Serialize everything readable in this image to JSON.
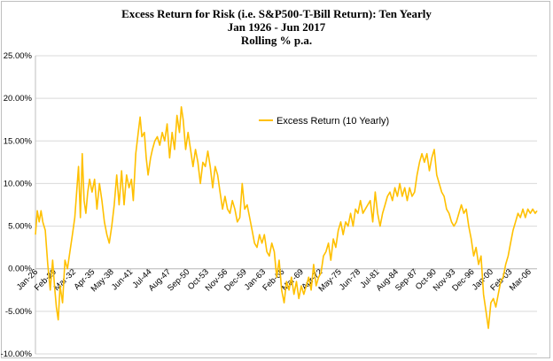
{
  "chart_data": {
    "type": "line",
    "title": "Excess Return for Risk (i.e. S&P500-T-Bill Return): Ten Yearly",
    "subtitle1": "Jan 1926 - Jun 2017",
    "subtitle2": "Rolling % p.a.",
    "ylim": [
      -10,
      25
    ],
    "yticks": [
      -10,
      -5,
      0,
      5,
      10,
      15,
      20,
      25
    ],
    "ytick_labels": [
      "-10.00%",
      "-5.00%",
      "0.00%",
      "5.00%",
      "10.00%",
      "15.00%",
      "20.00%",
      "25.00%"
    ],
    "xlim": [
      1926.0,
      2007.5
    ],
    "x_tick_positions": [
      1926.0,
      1929.0,
      1932.17,
      1935.25,
      1938.33,
      1941.42,
      1944.5,
      1947.58,
      1950.67,
      1953.75,
      1956.83,
      1959.92,
      1963.0,
      1966.08,
      1969.17,
      1972.25,
      1975.33,
      1978.42,
      1981.5,
      1984.58,
      1987.67,
      1990.75,
      1993.83,
      1996.92,
      2000.0,
      2003.08,
      2006.17
    ],
    "x_tick_labels": [
      "Jan-26",
      "Feb-29",
      "Mar-32",
      "Apr-35",
      "May-38",
      "Jun-41",
      "Jul-44",
      "Aug-47",
      "Sep-50",
      "Oct-53",
      "Nov-56",
      "Dec-59",
      "Jan-63",
      "Feb-66",
      "Mar-69",
      "Apr-72",
      "May-75",
      "Jun-78",
      "Jul-81",
      "Aug-84",
      "Sep-87",
      "Oct-90",
      "Nov-93",
      "Dec-96",
      "Jan-00",
      "Feb-03",
      "Mar-06"
    ],
    "grid": true,
    "legend_position": "top-right",
    "colors": {
      "line": "#ffc000",
      "grid": "#d9d9d9",
      "axis": "#bfbfbf"
    },
    "series": [
      {
        "name": "Excess Return (10 Yearly)",
        "points": [
          [
            1926.0,
            4.0
          ],
          [
            1926.3,
            6.8
          ],
          [
            1926.6,
            5.5
          ],
          [
            1926.9,
            6.8
          ],
          [
            1927.2,
            5.5
          ],
          [
            1927.6,
            4.5
          ],
          [
            1928.0,
            0.5
          ],
          [
            1928.4,
            -2.5
          ],
          [
            1928.8,
            1.0
          ],
          [
            1929.1,
            -2.0
          ],
          [
            1929.4,
            -4.5
          ],
          [
            1929.7,
            -6.0
          ],
          [
            1930.0,
            -2.0
          ],
          [
            1930.4,
            -4.0
          ],
          [
            1930.8,
            1.0
          ],
          [
            1931.2,
            0.0
          ],
          [
            1931.6,
            2.0
          ],
          [
            1932.0,
            4.0
          ],
          [
            1932.4,
            6.0
          ],
          [
            1932.8,
            10.0
          ],
          [
            1933.0,
            12.0
          ],
          [
            1933.3,
            6.0
          ],
          [
            1933.6,
            13.5
          ],
          [
            1933.9,
            8.0
          ],
          [
            1934.2,
            6.5
          ],
          [
            1934.5,
            9.0
          ],
          [
            1934.8,
            10.5
          ],
          [
            1935.2,
            9.0
          ],
          [
            1935.6,
            10.5
          ],
          [
            1936.0,
            7.0
          ],
          [
            1936.4,
            10.0
          ],
          [
            1936.8,
            8.0
          ],
          [
            1937.2,
            5.5
          ],
          [
            1937.6,
            4.0
          ],
          [
            1938.0,
            3.0
          ],
          [
            1938.4,
            5.0
          ],
          [
            1938.8,
            7.5
          ],
          [
            1939.2,
            11.0
          ],
          [
            1939.6,
            7.5
          ],
          [
            1940.0,
            11.5
          ],
          [
            1940.4,
            7.5
          ],
          [
            1940.8,
            11.0
          ],
          [
            1941.2,
            9.5
          ],
          [
            1941.6,
            10.5
          ],
          [
            1941.9,
            8.0
          ],
          [
            1942.3,
            13.5
          ],
          [
            1942.7,
            16.0
          ],
          [
            1943.0,
            17.8
          ],
          [
            1943.3,
            15.5
          ],
          [
            1943.7,
            16.0
          ],
          [
            1944.0,
            13.0
          ],
          [
            1944.3,
            11.0
          ],
          [
            1944.7,
            13.0
          ],
          [
            1945.0,
            14.0
          ],
          [
            1945.4,
            15.0
          ],
          [
            1945.8,
            15.5
          ],
          [
            1946.2,
            14.5
          ],
          [
            1946.6,
            16.0
          ],
          [
            1947.0,
            15.0
          ],
          [
            1947.4,
            17.0
          ],
          [
            1947.8,
            13.0
          ],
          [
            1948.2,
            16.0
          ],
          [
            1948.6,
            14.0
          ],
          [
            1949.0,
            18.0
          ],
          [
            1949.4,
            16.0
          ],
          [
            1949.7,
            19.0
          ],
          [
            1950.0,
            17.5
          ],
          [
            1950.4,
            14.0
          ],
          [
            1950.8,
            16.0
          ],
          [
            1951.2,
            14.0
          ],
          [
            1951.6,
            12.0
          ],
          [
            1952.0,
            14.0
          ],
          [
            1952.4,
            12.5
          ],
          [
            1952.8,
            10.0
          ],
          [
            1953.2,
            12.5
          ],
          [
            1953.6,
            12.0
          ],
          [
            1954.0,
            13.8
          ],
          [
            1954.4,
            12.0
          ],
          [
            1954.8,
            9.5
          ],
          [
            1955.2,
            12.0
          ],
          [
            1955.6,
            11.0
          ],
          [
            1956.0,
            9.0
          ],
          [
            1956.4,
            7.0
          ],
          [
            1956.8,
            8.5
          ],
          [
            1957.2,
            7.0
          ],
          [
            1957.6,
            6.5
          ],
          [
            1958.0,
            8.0
          ],
          [
            1958.4,
            7.0
          ],
          [
            1958.8,
            5.5
          ],
          [
            1959.2,
            6.0
          ],
          [
            1959.6,
            10.0
          ],
          [
            1960.0,
            7.0
          ],
          [
            1960.4,
            7.5
          ],
          [
            1960.8,
            6.0
          ],
          [
            1961.2,
            4.5
          ],
          [
            1961.6,
            3.0
          ],
          [
            1962.0,
            2.5
          ],
          [
            1962.4,
            4.0
          ],
          [
            1962.8,
            3.0
          ],
          [
            1963.2,
            4.0
          ],
          [
            1963.6,
            2.0
          ],
          [
            1964.0,
            1.5
          ],
          [
            1964.4,
            3.0
          ],
          [
            1964.8,
            2.0
          ],
          [
            1965.2,
            -1.0
          ],
          [
            1965.6,
            1.0
          ],
          [
            1966.0,
            -2.5
          ],
          [
            1966.4,
            -4.0
          ],
          [
            1966.8,
            -1.5
          ],
          [
            1967.2,
            -2.5
          ],
          [
            1967.6,
            -1.0
          ],
          [
            1968.0,
            -3.0
          ],
          [
            1968.4,
            -1.5
          ],
          [
            1968.8,
            -3.5
          ],
          [
            1969.2,
            -2.0
          ],
          [
            1969.6,
            -3.0
          ],
          [
            1970.0,
            -2.0
          ],
          [
            1970.4,
            -1.0
          ],
          [
            1970.8,
            -2.5
          ],
          [
            1971.2,
            0.5
          ],
          [
            1971.6,
            -2.0
          ],
          [
            1972.0,
            -1.0
          ],
          [
            1972.4,
            -0.5
          ],
          [
            1972.8,
            1.5
          ],
          [
            1973.2,
            2.0
          ],
          [
            1973.6,
            3.0
          ],
          [
            1974.0,
            1.0
          ],
          [
            1974.4,
            3.5
          ],
          [
            1974.8,
            2.5
          ],
          [
            1975.2,
            4.5
          ],
          [
            1975.6,
            5.5
          ],
          [
            1976.0,
            4.0
          ],
          [
            1976.4,
            5.5
          ],
          [
            1976.8,
            5.0
          ],
          [
            1977.2,
            6.5
          ],
          [
            1977.6,
            5.0
          ],
          [
            1978.0,
            7.0
          ],
          [
            1978.4,
            6.5
          ],
          [
            1978.8,
            8.0
          ],
          [
            1979.2,
            6.5
          ],
          [
            1979.6,
            7.0
          ],
          [
            1980.0,
            7.5
          ],
          [
            1980.4,
            8.0
          ],
          [
            1980.8,
            5.5
          ],
          [
            1981.2,
            9.0
          ],
          [
            1981.6,
            6.5
          ],
          [
            1982.0,
            5.0
          ],
          [
            1982.4,
            6.5
          ],
          [
            1982.8,
            7.5
          ],
          [
            1983.2,
            8.5
          ],
          [
            1983.6,
            9.0
          ],
          [
            1984.0,
            8.0
          ],
          [
            1984.4,
            9.5
          ],
          [
            1984.8,
            8.5
          ],
          [
            1985.2,
            10.0
          ],
          [
            1985.6,
            8.5
          ],
          [
            1986.0,
            9.5
          ],
          [
            1986.4,
            8.0
          ],
          [
            1986.8,
            9.5
          ],
          [
            1987.2,
            8.5
          ],
          [
            1987.6,
            9.0
          ],
          [
            1988.0,
            11.0
          ],
          [
            1988.4,
            12.5
          ],
          [
            1988.8,
            13.5
          ],
          [
            1989.2,
            12.5
          ],
          [
            1989.6,
            13.5
          ],
          [
            1990.0,
            11.5
          ],
          [
            1990.4,
            13.0
          ],
          [
            1990.8,
            14.0
          ],
          [
            1991.2,
            11.0
          ],
          [
            1991.6,
            10.0
          ],
          [
            1992.0,
            9.0
          ],
          [
            1992.4,
            8.5
          ],
          [
            1992.8,
            7.0
          ],
          [
            1993.2,
            6.5
          ],
          [
            1993.6,
            5.5
          ],
          [
            1994.0,
            5.0
          ],
          [
            1994.4,
            5.5
          ],
          [
            1994.8,
            6.5
          ],
          [
            1995.2,
            7.5
          ],
          [
            1995.6,
            6.5
          ],
          [
            1996.0,
            7.0
          ],
          [
            1996.4,
            5.0
          ],
          [
            1996.8,
            3.5
          ],
          [
            1997.2,
            1.5
          ],
          [
            1997.6,
            2.5
          ],
          [
            1998.0,
            0.5
          ],
          [
            1998.4,
            1.5
          ],
          [
            1998.8,
            -3.0
          ],
          [
            1999.2,
            -5.0
          ],
          [
            1999.6,
            -7.0
          ],
          [
            2000.0,
            -4.0
          ],
          [
            2000.4,
            -3.5
          ],
          [
            2000.8,
            -4.5
          ],
          [
            2001.2,
            -3.0
          ],
          [
            2001.6,
            -1.5
          ],
          [
            2002.0,
            -1.0
          ],
          [
            2002.4,
            0.5
          ],
          [
            2002.8,
            1.5
          ],
          [
            2003.2,
            3.0
          ],
          [
            2003.6,
            4.5
          ],
          [
            2004.0,
            5.5
          ],
          [
            2004.4,
            6.5
          ],
          [
            2004.8,
            6.0
          ],
          [
            2005.2,
            7.0
          ],
          [
            2005.6,
            6.0
          ],
          [
            2006.0,
            7.0
          ],
          [
            2006.4,
            6.5
          ],
          [
            2006.8,
            7.0
          ],
          [
            2007.2,
            6.5
          ],
          [
            2007.5,
            6.8
          ]
        ]
      }
    ]
  }
}
